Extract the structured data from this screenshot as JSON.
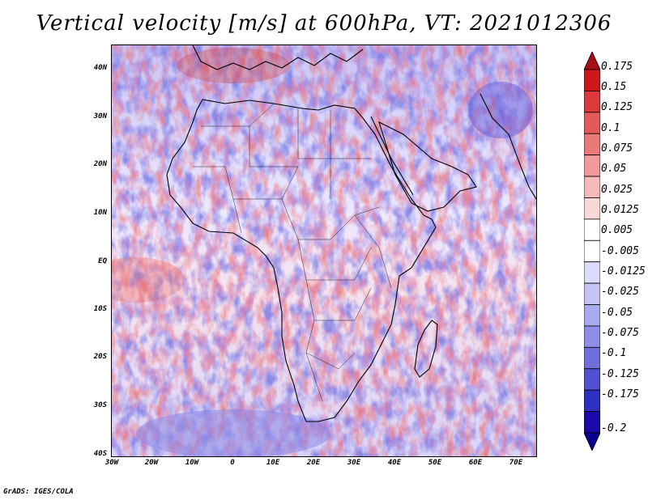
{
  "title": "Vertical velocity [m/s] at 600hPa, VT: 2021012306",
  "footer": "GrADS: IGES/COLA",
  "y_axis_labels": [
    "40N",
    "30N",
    "20N",
    "10N",
    "EQ",
    "10S",
    "20S",
    "30S",
    "40S"
  ],
  "x_axis_labels": [
    "30W",
    "20W",
    "10W",
    "0",
    "10E",
    "20E",
    "30E",
    "40E",
    "50E",
    "60E",
    "70E"
  ],
  "colorbar": {
    "levels": [
      "0.175",
      "0.15",
      "0.125",
      "0.1",
      "0.075",
      "0.05",
      "0.025",
      "0.0125",
      "0.005",
      "-0.005",
      "-0.0125",
      "-0.025",
      "-0.05",
      "-0.075",
      "-0.1",
      "-0.125",
      "-0.175",
      "-0.2"
    ],
    "colors": [
      "#a50f15",
      "#cb181d",
      "#dc3a3a",
      "#e35a5a",
      "#ea7a7a",
      "#f09a9a",
      "#f6baba",
      "#fbd8d8",
      "#ffffff",
      "#ffffff",
      "#dcdcfa",
      "#c4c4f4",
      "#aaaaee",
      "#8e8ee6",
      "#7070dc",
      "#5050d0",
      "#3030c0",
      "#1a0aa8",
      "#0a0090"
    ]
  },
  "colors": {
    "background": "#f4f2ff",
    "ascent": "#e86060",
    "descent": "#7070e0",
    "coastline": "#000000"
  }
}
